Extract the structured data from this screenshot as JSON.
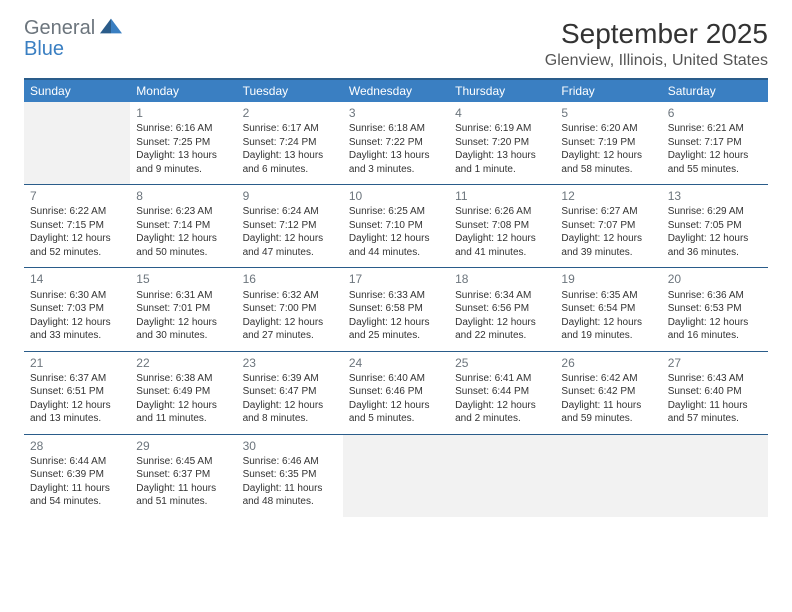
{
  "logo": {
    "line1": "General",
    "line2": "Blue"
  },
  "title": "September 2025",
  "location": "Glenview, Illinois, United States",
  "colors": {
    "header_bg": "#3a7fc2",
    "header_text": "#ffffff",
    "border": "#2a5c8a",
    "logo_gray": "#6c757d",
    "logo_blue": "#3a7fc2",
    "text": "#333333",
    "empty_bg": "#f2f2f2"
  },
  "weekdays": [
    "Sunday",
    "Monday",
    "Tuesday",
    "Wednesday",
    "Thursday",
    "Friday",
    "Saturday"
  ],
  "weeks": [
    [
      null,
      {
        "day": "1",
        "sunrise": "Sunrise: 6:16 AM",
        "sunset": "Sunset: 7:25 PM",
        "daylight": "Daylight: 13 hours and 9 minutes."
      },
      {
        "day": "2",
        "sunrise": "Sunrise: 6:17 AM",
        "sunset": "Sunset: 7:24 PM",
        "daylight": "Daylight: 13 hours and 6 minutes."
      },
      {
        "day": "3",
        "sunrise": "Sunrise: 6:18 AM",
        "sunset": "Sunset: 7:22 PM",
        "daylight": "Daylight: 13 hours and 3 minutes."
      },
      {
        "day": "4",
        "sunrise": "Sunrise: 6:19 AM",
        "sunset": "Sunset: 7:20 PM",
        "daylight": "Daylight: 13 hours and 1 minute."
      },
      {
        "day": "5",
        "sunrise": "Sunrise: 6:20 AM",
        "sunset": "Sunset: 7:19 PM",
        "daylight": "Daylight: 12 hours and 58 minutes."
      },
      {
        "day": "6",
        "sunrise": "Sunrise: 6:21 AM",
        "sunset": "Sunset: 7:17 PM",
        "daylight": "Daylight: 12 hours and 55 minutes."
      }
    ],
    [
      {
        "day": "7",
        "sunrise": "Sunrise: 6:22 AM",
        "sunset": "Sunset: 7:15 PM",
        "daylight": "Daylight: 12 hours and 52 minutes."
      },
      {
        "day": "8",
        "sunrise": "Sunrise: 6:23 AM",
        "sunset": "Sunset: 7:14 PM",
        "daylight": "Daylight: 12 hours and 50 minutes."
      },
      {
        "day": "9",
        "sunrise": "Sunrise: 6:24 AM",
        "sunset": "Sunset: 7:12 PM",
        "daylight": "Daylight: 12 hours and 47 minutes."
      },
      {
        "day": "10",
        "sunrise": "Sunrise: 6:25 AM",
        "sunset": "Sunset: 7:10 PM",
        "daylight": "Daylight: 12 hours and 44 minutes."
      },
      {
        "day": "11",
        "sunrise": "Sunrise: 6:26 AM",
        "sunset": "Sunset: 7:08 PM",
        "daylight": "Daylight: 12 hours and 41 minutes."
      },
      {
        "day": "12",
        "sunrise": "Sunrise: 6:27 AM",
        "sunset": "Sunset: 7:07 PM",
        "daylight": "Daylight: 12 hours and 39 minutes."
      },
      {
        "day": "13",
        "sunrise": "Sunrise: 6:29 AM",
        "sunset": "Sunset: 7:05 PM",
        "daylight": "Daylight: 12 hours and 36 minutes."
      }
    ],
    [
      {
        "day": "14",
        "sunrise": "Sunrise: 6:30 AM",
        "sunset": "Sunset: 7:03 PM",
        "daylight": "Daylight: 12 hours and 33 minutes."
      },
      {
        "day": "15",
        "sunrise": "Sunrise: 6:31 AM",
        "sunset": "Sunset: 7:01 PM",
        "daylight": "Daylight: 12 hours and 30 minutes."
      },
      {
        "day": "16",
        "sunrise": "Sunrise: 6:32 AM",
        "sunset": "Sunset: 7:00 PM",
        "daylight": "Daylight: 12 hours and 27 minutes."
      },
      {
        "day": "17",
        "sunrise": "Sunrise: 6:33 AM",
        "sunset": "Sunset: 6:58 PM",
        "daylight": "Daylight: 12 hours and 25 minutes."
      },
      {
        "day": "18",
        "sunrise": "Sunrise: 6:34 AM",
        "sunset": "Sunset: 6:56 PM",
        "daylight": "Daylight: 12 hours and 22 minutes."
      },
      {
        "day": "19",
        "sunrise": "Sunrise: 6:35 AM",
        "sunset": "Sunset: 6:54 PM",
        "daylight": "Daylight: 12 hours and 19 minutes."
      },
      {
        "day": "20",
        "sunrise": "Sunrise: 6:36 AM",
        "sunset": "Sunset: 6:53 PM",
        "daylight": "Daylight: 12 hours and 16 minutes."
      }
    ],
    [
      {
        "day": "21",
        "sunrise": "Sunrise: 6:37 AM",
        "sunset": "Sunset: 6:51 PM",
        "daylight": "Daylight: 12 hours and 13 minutes."
      },
      {
        "day": "22",
        "sunrise": "Sunrise: 6:38 AM",
        "sunset": "Sunset: 6:49 PM",
        "daylight": "Daylight: 12 hours and 11 minutes."
      },
      {
        "day": "23",
        "sunrise": "Sunrise: 6:39 AM",
        "sunset": "Sunset: 6:47 PM",
        "daylight": "Daylight: 12 hours and 8 minutes."
      },
      {
        "day": "24",
        "sunrise": "Sunrise: 6:40 AM",
        "sunset": "Sunset: 6:46 PM",
        "daylight": "Daylight: 12 hours and 5 minutes."
      },
      {
        "day": "25",
        "sunrise": "Sunrise: 6:41 AM",
        "sunset": "Sunset: 6:44 PM",
        "daylight": "Daylight: 12 hours and 2 minutes."
      },
      {
        "day": "26",
        "sunrise": "Sunrise: 6:42 AM",
        "sunset": "Sunset: 6:42 PM",
        "daylight": "Daylight: 11 hours and 59 minutes."
      },
      {
        "day": "27",
        "sunrise": "Sunrise: 6:43 AM",
        "sunset": "Sunset: 6:40 PM",
        "daylight": "Daylight: 11 hours and 57 minutes."
      }
    ],
    [
      {
        "day": "28",
        "sunrise": "Sunrise: 6:44 AM",
        "sunset": "Sunset: 6:39 PM",
        "daylight": "Daylight: 11 hours and 54 minutes."
      },
      {
        "day": "29",
        "sunrise": "Sunrise: 6:45 AM",
        "sunset": "Sunset: 6:37 PM",
        "daylight": "Daylight: 11 hours and 51 minutes."
      },
      {
        "day": "30",
        "sunrise": "Sunrise: 6:46 AM",
        "sunset": "Sunset: 6:35 PM",
        "daylight": "Daylight: 11 hours and 48 minutes."
      },
      null,
      null,
      null,
      null
    ]
  ]
}
